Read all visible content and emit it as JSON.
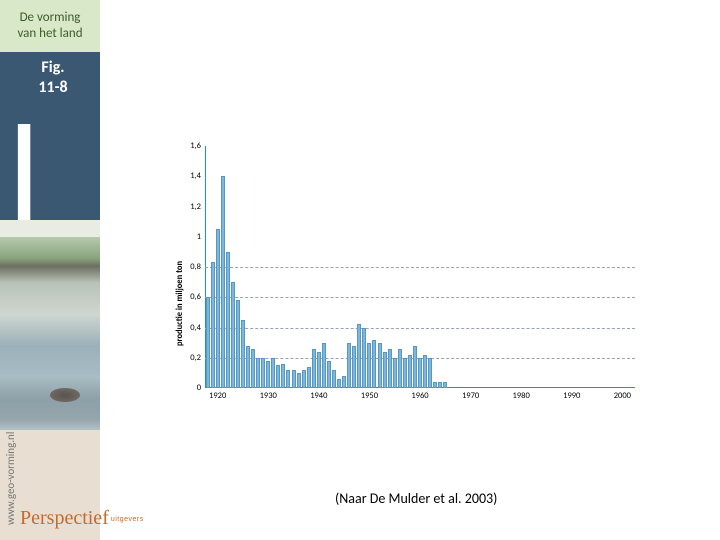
{
  "header": {
    "line1": "De vorming",
    "line2": "van het land"
  },
  "figure_label": {
    "line1": "Fig.",
    "line2": "11-8"
  },
  "sidebar": {
    "url": "www.geo-vorming.nl",
    "publisher": "Perspectief",
    "publisher_sub": "uitgevers"
  },
  "caption": "(Naar De Mulder et al. 2003)",
  "chart": {
    "type": "bar",
    "ylabel": "productie in miljoen ton",
    "ylim": [
      0,
      1.6
    ],
    "yticks": [
      0,
      0.2,
      0.4,
      0.6,
      0.8,
      1,
      1.2,
      1.4,
      1.6
    ],
    "ytick_labels": [
      "0",
      "0,2",
      "0,4",
      "0,6",
      "0,8",
      "1",
      "1,2",
      "1,4",
      "1,6"
    ],
    "gridlines": [
      0.2,
      0.4,
      0.6,
      0.8
    ],
    "xlim": [
      1917.5,
      2002.5
    ],
    "xticks": [
      1920,
      1930,
      1940,
      1950,
      1960,
      1970,
      1980,
      1990,
      2000
    ],
    "xtick_labels": [
      "1920",
      "1930",
      "1940",
      "1950",
      "1960",
      "1970",
      "1980",
      "1990",
      "2000"
    ],
    "bar_color": "#79b8e0",
    "bar_border_color": "#5a96bd",
    "axis_color": "#1a9e9e",
    "grid_color": "#94a3b8",
    "background_color": "#ffffff",
    "label_fontsize": 8.5,
    "data": [
      {
        "x": 1918,
        "y": 0.6
      },
      {
        "x": 1919,
        "y": 0.83
      },
      {
        "x": 1920,
        "y": 1.05
      },
      {
        "x": 1921,
        "y": 1.4
      },
      {
        "x": 1922,
        "y": 0.9
      },
      {
        "x": 1923,
        "y": 0.7
      },
      {
        "x": 1924,
        "y": 0.58
      },
      {
        "x": 1925,
        "y": 0.45
      },
      {
        "x": 1926,
        "y": 0.28
      },
      {
        "x": 1927,
        "y": 0.26
      },
      {
        "x": 1928,
        "y": 0.2
      },
      {
        "x": 1929,
        "y": 0.2
      },
      {
        "x": 1930,
        "y": 0.18
      },
      {
        "x": 1931,
        "y": 0.2
      },
      {
        "x": 1932,
        "y": 0.15
      },
      {
        "x": 1933,
        "y": 0.16
      },
      {
        "x": 1934,
        "y": 0.12
      },
      {
        "x": 1935,
        "y": 0.12
      },
      {
        "x": 1936,
        "y": 0.1
      },
      {
        "x": 1937,
        "y": 0.12
      },
      {
        "x": 1938,
        "y": 0.14
      },
      {
        "x": 1939,
        "y": 0.26
      },
      {
        "x": 1940,
        "y": 0.24
      },
      {
        "x": 1941,
        "y": 0.3
      },
      {
        "x": 1942,
        "y": 0.18
      },
      {
        "x": 1943,
        "y": 0.12
      },
      {
        "x": 1944,
        "y": 0.06
      },
      {
        "x": 1945,
        "y": 0.08
      },
      {
        "x": 1946,
        "y": 0.3
      },
      {
        "x": 1947,
        "y": 0.28
      },
      {
        "x": 1948,
        "y": 0.42
      },
      {
        "x": 1949,
        "y": 0.4
      },
      {
        "x": 1950,
        "y": 0.3
      },
      {
        "x": 1951,
        "y": 0.32
      },
      {
        "x": 1952,
        "y": 0.3
      },
      {
        "x": 1953,
        "y": 0.24
      },
      {
        "x": 1954,
        "y": 0.26
      },
      {
        "x": 1955,
        "y": 0.2
      },
      {
        "x": 1956,
        "y": 0.26
      },
      {
        "x": 1957,
        "y": 0.2
      },
      {
        "x": 1958,
        "y": 0.22
      },
      {
        "x": 1959,
        "y": 0.28
      },
      {
        "x": 1960,
        "y": 0.2
      },
      {
        "x": 1961,
        "y": 0.22
      },
      {
        "x": 1962,
        "y": 0.2
      },
      {
        "x": 1963,
        "y": 0.04
      },
      {
        "x": 1964,
        "y": 0.04
      },
      {
        "x": 1965,
        "y": 0.04
      }
    ]
  }
}
